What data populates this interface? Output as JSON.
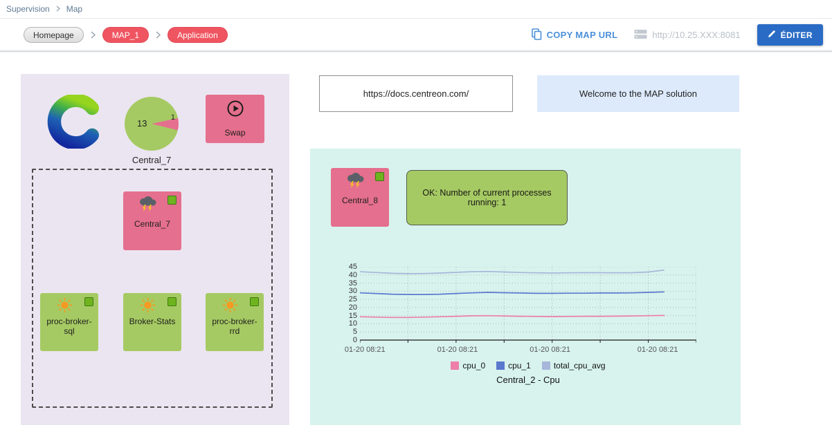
{
  "breadcrumb": {
    "section": "Supervision",
    "page": "Map"
  },
  "toolbar": {
    "homepage": "Homepage",
    "map_name": "MAP_1",
    "view_name": "Application",
    "copy_map_url": "COPY MAP URL",
    "server_url": "http://10.25.XXX:8081",
    "edit": "ÉDITER"
  },
  "left_panel": {
    "logo_icon": "centreon-logo",
    "gauge": {
      "value": "13",
      "slice_value": "1",
      "label": "Central_7"
    },
    "swap_node": {
      "label": "Swap",
      "icon": "play-circle-icon"
    },
    "central_7_node": {
      "label": "Central_7",
      "icon": "storm-cloud-icon",
      "status": "status-square-green"
    },
    "service_nodes": [
      {
        "label": "proc-broker-sql",
        "icon": "sun-icon",
        "status": "status-square-green"
      },
      {
        "label": "Broker-Stats",
        "icon": "sun-icon",
        "status": "status-square-green"
      },
      {
        "label": "proc-broker-rrd",
        "icon": "sun-icon",
        "status": "status-square-green"
      }
    ]
  },
  "right_area": {
    "docs_link": "https://docs.centreon.com/",
    "welcome_text": "Welcome to the MAP solution"
  },
  "right_panel": {
    "central_8_node": {
      "label": "Central_8",
      "icon": "storm-cloud-icon",
      "status": "status-square-green"
    },
    "status_message": "OK: Number of current processes running: 1"
  },
  "chart_data": {
    "type": "line",
    "title": "Central_2 - Cpu",
    "xlabel": "",
    "ylabel": "",
    "ylim": [
      0,
      45
    ],
    "y_ticks": [
      0,
      5,
      10,
      15,
      20,
      25,
      30,
      35,
      40,
      45
    ],
    "x_tick_labels": [
      "01-20 08:21",
      "01-20 08:21",
      "01-20 08:21",
      "01-20 08:21"
    ],
    "x_tick_positions": [
      0.015,
      0.29,
      0.565,
      0.885
    ],
    "grid": true,
    "legend_position": "bottom",
    "series": [
      {
        "name": "cpu_0",
        "color": "#ee7fa9",
        "values": [
          14.3,
          14.1,
          13.9,
          13.9,
          14.1,
          14.3,
          14.6,
          14.9,
          15.0,
          14.8,
          14.6,
          14.5,
          14.4,
          14.5,
          14.6,
          14.6,
          14.7,
          14.8,
          15.0,
          15.1
        ]
      },
      {
        "name": "cpu_1",
        "color": "#5b78cf",
        "values": [
          29.0,
          28.6,
          28.2,
          28.0,
          28.0,
          28.2,
          28.6,
          29.0,
          29.3,
          29.1,
          28.9,
          28.7,
          28.7,
          28.8,
          28.8,
          28.9,
          28.9,
          29.0,
          29.3,
          29.6
        ]
      },
      {
        "name": "total_cpu_avg",
        "color": "#a7b6da",
        "values": [
          42.0,
          41.5,
          41.0,
          40.8,
          40.9,
          41.2,
          41.6,
          42.0,
          42.1,
          41.8,
          41.5,
          41.3,
          41.2,
          41.3,
          41.4,
          41.4,
          41.3,
          41.4,
          41.8,
          43.0
        ]
      }
    ]
  },
  "colors": {
    "pink_node": "#e56f8e",
    "green_node": "#a6ca63",
    "status_green": "#6fb31f",
    "left_panel_bg": "#ebe5f1",
    "right_panel_bg": "#d8f3ed",
    "welcome_bg": "#ddeafc",
    "link_blue": "#4a90d9",
    "edit_button": "#2a6cc5",
    "pill_red": "#ef5561"
  }
}
